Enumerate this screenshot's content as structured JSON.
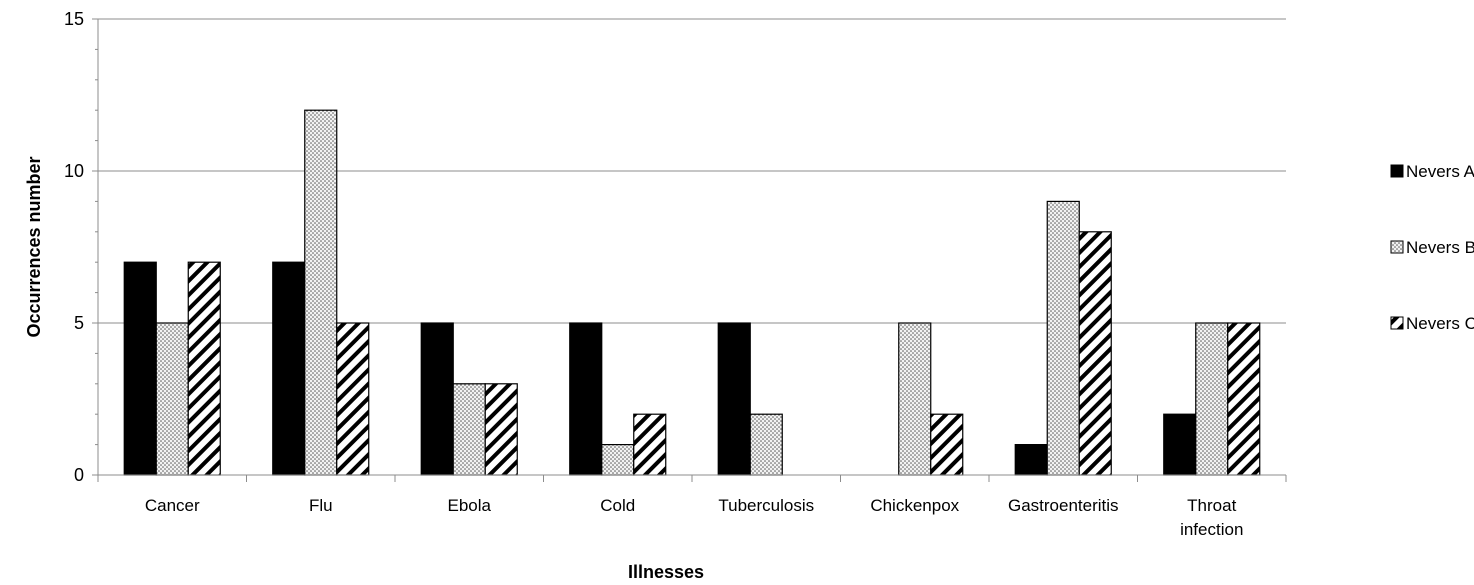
{
  "chart_data": {
    "type": "bar",
    "title": "",
    "xlabel": "Illnesses",
    "ylabel": "Occurrences number",
    "ylim": [
      0,
      15
    ],
    "yticks": [
      0,
      5,
      10,
      15
    ],
    "grid": true,
    "legend_position": "right",
    "categories": [
      "Cancer",
      "Flu",
      "Ebola",
      "Cold",
      "Tuberculosis",
      "Chickenpox",
      "Gastroenteritis",
      "Throat infection"
    ],
    "series": [
      {
        "name": "Nevers A",
        "pattern": "solid",
        "color": "#000000",
        "values": [
          7,
          7,
          5,
          5,
          5,
          0,
          1,
          2
        ]
      },
      {
        "name": "Nevers B",
        "pattern": "dotted",
        "color": "#d9d9d9",
        "values": [
          5,
          12,
          3,
          1,
          2,
          5,
          9,
          5
        ]
      },
      {
        "name": "Nevers C",
        "pattern": "diagonal-stripes",
        "color": "#000000",
        "values": [
          7,
          5,
          3,
          2,
          0,
          2,
          8,
          5
        ]
      }
    ]
  }
}
